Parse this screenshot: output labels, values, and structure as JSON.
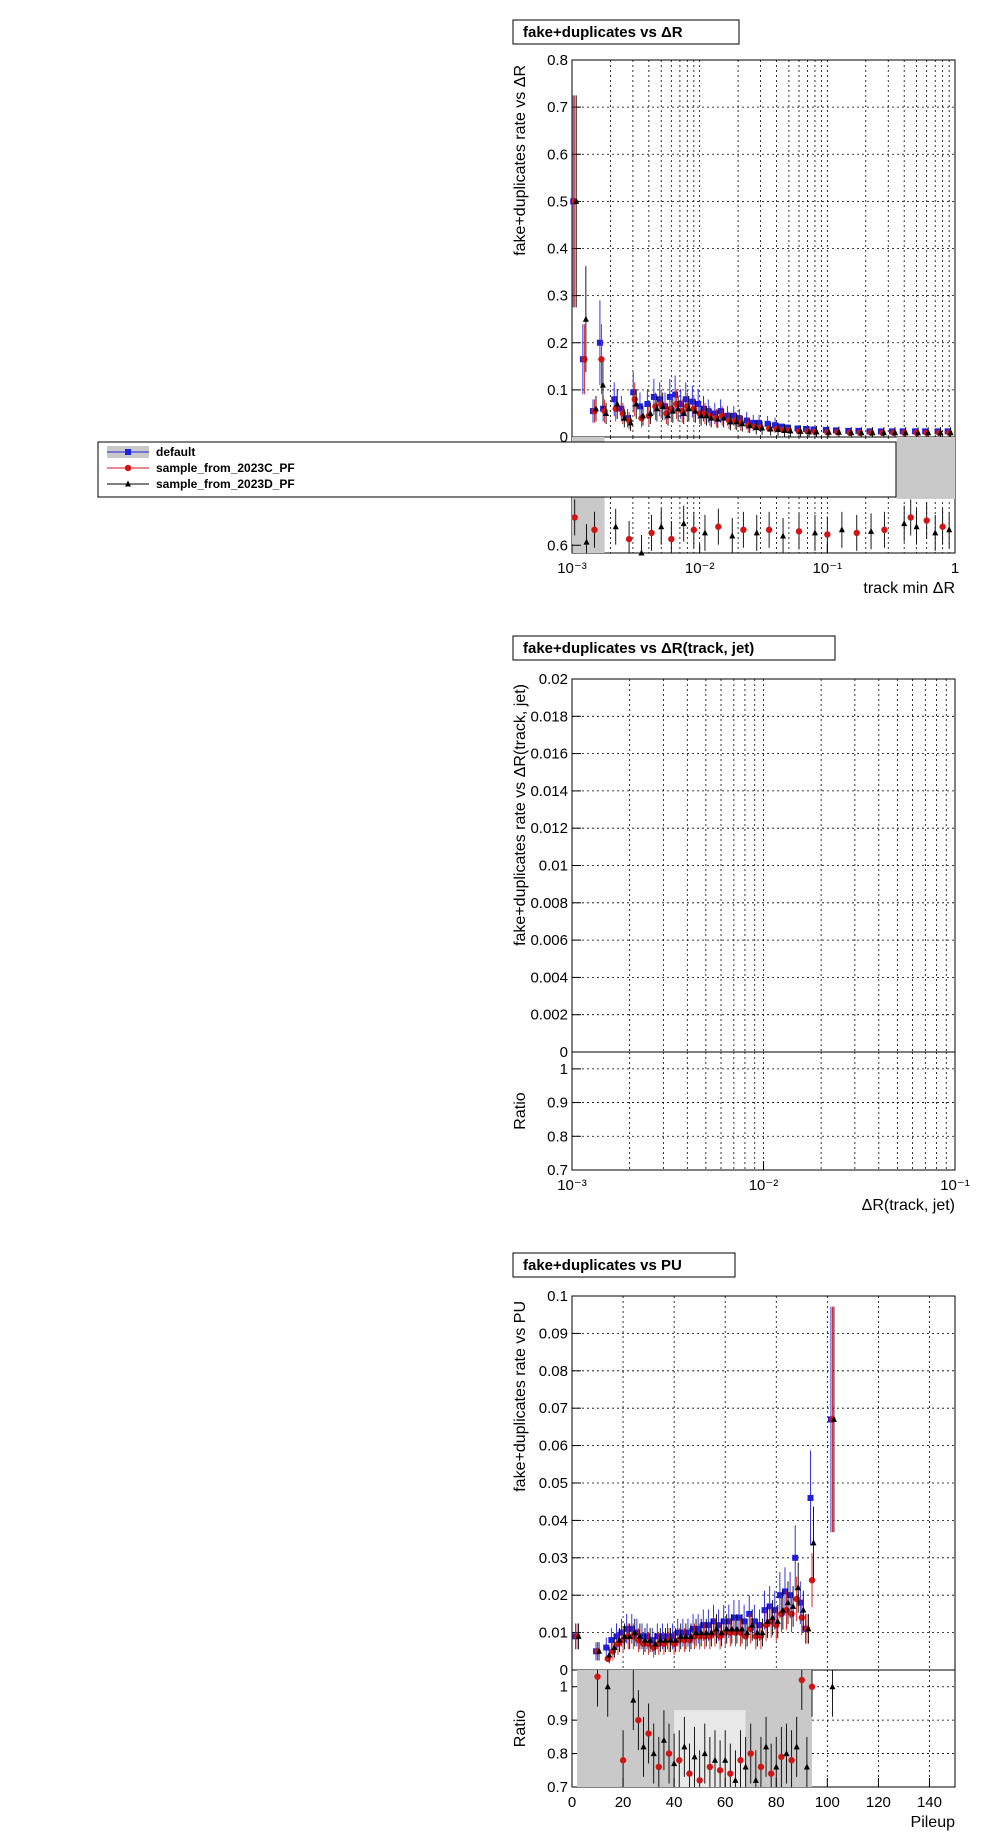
{
  "colors": {
    "default": "#1f1fe0",
    "c": "#d11515",
    "d": "#000000",
    "band": "#c9c9c9"
  },
  "legend": {
    "items": [
      {
        "label": "default",
        "marker": "square",
        "color": "#1f1fe0"
      },
      {
        "label": "sample_from_2023C_PF",
        "marker": "circle",
        "color": "#d11515"
      },
      {
        "label": "sample_from_2023D_PF",
        "marker": "triangle",
        "color": "#000000"
      }
    ]
  },
  "chart_data": [
    {
      "type": "scatter",
      "title": "fake+duplicates vs  ΔR",
      "ylabel": "fake+duplicates rate vs  ΔR",
      "xlabel": "track min  ΔR",
      "xscale": "log",
      "xlim": [
        0.001,
        1
      ],
      "ylim": [
        0,
        0.8
      ],
      "yticks": [
        "0",
        "0.1",
        "0.2",
        "0.3",
        "0.4",
        "0.5",
        "0.6",
        "0.7",
        "0.8"
      ],
      "xticks": [
        "10⁻³",
        "10⁻²",
        "10⁻¹",
        "1"
      ],
      "ratio_ticks": [
        "0.6"
      ],
      "ratio_ylim": [
        0.55,
        1.3
      ],
      "series": [
        {
          "name": "default",
          "marker": "square",
          "x": [
            0.00105,
            0.00125,
            0.0015,
            0.0017,
            0.0018,
            0.0022,
            0.0025,
            0.0028,
            0.0031,
            0.0035,
            0.004,
            0.0045,
            0.005,
            0.0055,
            0.006,
            0.0066,
            0.0073,
            0.008,
            0.009,
            0.01,
            0.011,
            0.012,
            0.0135,
            0.015,
            0.017,
            0.019,
            0.021,
            0.024,
            0.027,
            0.03,
            0.035,
            0.04,
            0.045,
            0.05,
            0.06,
            0.07,
            0.08,
            0.1,
            0.12,
            0.15,
            0.18,
            0.22,
            0.27,
            0.33,
            0.4,
            0.5,
            0.6,
            0.75,
            0.9
          ],
          "y": [
            0.5,
            0.165,
            0.055,
            0.2,
            0.06,
            0.08,
            0.06,
            0.04,
            0.095,
            0.065,
            0.07,
            0.085,
            0.08,
            0.065,
            0.085,
            0.09,
            0.07,
            0.08,
            0.075,
            0.07,
            0.06,
            0.055,
            0.05,
            0.055,
            0.045,
            0.045,
            0.04,
            0.035,
            0.03,
            0.03,
            0.028,
            0.025,
            0.022,
            0.02,
            0.018,
            0.017,
            0.016,
            0.015,
            0.014,
            0.013,
            0.013,
            0.012,
            0.012,
            0.012,
            0.012,
            0.012,
            0.012,
            0.012,
            0.012
          ]
        },
        {
          "name": "sample_from_2023C_PF",
          "marker": "circle",
          "x": [
            0.00105,
            0.00125,
            0.0015,
            0.0017,
            0.0018,
            0.0022,
            0.0025,
            0.0028,
            0.0031,
            0.0035,
            0.004,
            0.0045,
            0.005,
            0.0055,
            0.006,
            0.0066,
            0.0073,
            0.008,
            0.009,
            0.01,
            0.011,
            0.012,
            0.0135,
            0.015,
            0.017,
            0.019,
            0.021,
            0.024,
            0.027,
            0.03,
            0.035,
            0.04,
            0.045,
            0.05,
            0.06,
            0.07,
            0.08,
            0.1,
            0.12,
            0.15,
            0.18,
            0.22,
            0.27,
            0.33,
            0.4,
            0.5,
            0.6,
            0.75,
            0.9
          ],
          "y": [
            0.5,
            0.165,
            0.055,
            0.165,
            0.055,
            0.06,
            0.05,
            0.035,
            0.08,
            0.04,
            0.045,
            0.065,
            0.07,
            0.05,
            0.06,
            0.07,
            0.055,
            0.065,
            0.06,
            0.05,
            0.05,
            0.045,
            0.04,
            0.045,
            0.035,
            0.035,
            0.03,
            0.025,
            0.022,
            0.02,
            0.018,
            0.017,
            0.015,
            0.014,
            0.012,
            0.012,
            0.011,
            0.01,
            0.01,
            0.009,
            0.009,
            0.009,
            0.009,
            0.009,
            0.009,
            0.009,
            0.009,
            0.009,
            0.009
          ]
        },
        {
          "name": "sample_from_2023D_PF",
          "marker": "triangle",
          "x": [
            0.00105,
            0.00125,
            0.0015,
            0.0017,
            0.0018,
            0.0022,
            0.0025,
            0.0028,
            0.0031,
            0.0035,
            0.004,
            0.0045,
            0.005,
            0.0055,
            0.006,
            0.0066,
            0.0073,
            0.008,
            0.009,
            0.01,
            0.011,
            0.012,
            0.0135,
            0.015,
            0.017,
            0.019,
            0.021,
            0.024,
            0.027,
            0.03,
            0.035,
            0.04,
            0.045,
            0.05,
            0.06,
            0.07,
            0.08,
            0.1,
            0.12,
            0.15,
            0.18,
            0.22,
            0.27,
            0.33,
            0.4,
            0.5,
            0.6,
            0.75,
            0.9
          ],
          "y": [
            0.5,
            0.25,
            0.06,
            0.11,
            0.05,
            0.07,
            0.04,
            0.03,
            0.07,
            0.045,
            0.05,
            0.06,
            0.065,
            0.045,
            0.055,
            0.06,
            0.05,
            0.06,
            0.055,
            0.045,
            0.045,
            0.04,
            0.038,
            0.04,
            0.032,
            0.032,
            0.028,
            0.024,
            0.02,
            0.019,
            0.017,
            0.016,
            0.014,
            0.013,
            0.012,
            0.011,
            0.011,
            0.01,
            0.01,
            0.009,
            0.009,
            0.009,
            0.009,
            0.009,
            0.009,
            0.009,
            0.009,
            0.009,
            0.009
          ]
        }
      ]
    },
    {
      "type": "scatter",
      "title": "fake+duplicates vs  ΔR(track, jet)",
      "ylabel": "fake+duplicates rate vs  ΔR(track, jet)",
      "xlabel": "ΔR(track, jet)",
      "xscale": "log",
      "xlim": [
        0.001,
        0.1
      ],
      "ylim": [
        0,
        0.02
      ],
      "yticks": [
        "0",
        "0.002",
        "0.004",
        "0.006",
        "0.008",
        "0.01",
        "0.012",
        "0.014",
        "0.016",
        "0.018",
        "0.02"
      ],
      "xticks": [
        "10⁻³",
        "10⁻²",
        "10⁻¹"
      ],
      "ratio_label": "Ratio",
      "ratio_ylim": [
        0.7,
        1.05
      ],
      "ratio_ticks": [
        "0.7",
        "0.8",
        "0.9",
        "1"
      ],
      "series": []
    },
    {
      "type": "scatter",
      "title": "fake+duplicates vs PU",
      "ylabel": "fake+duplicates rate vs PU",
      "xlabel": "Pileup",
      "xscale": "linear",
      "xlim": [
        0,
        150
      ],
      "ylim": [
        0,
        0.1
      ],
      "yticks": [
        "0",
        "0.01",
        "0.02",
        "0.03",
        "0.04",
        "0.05",
        "0.06",
        "0.07",
        "0.08",
        "0.09",
        "0.1"
      ],
      "xticks": [
        "0",
        "20",
        "40",
        "60",
        "80",
        "100",
        "120",
        "140"
      ],
      "ratio_label": "Ratio",
      "ratio_ylim": [
        0.7,
        1.05
      ],
      "ratio_ticks": [
        "0.7",
        "0.8",
        "0.9",
        "1"
      ],
      "series": [
        {
          "name": "default",
          "marker": "square",
          "x": [
            2,
            10,
            14,
            16,
            18,
            20,
            22,
            24,
            26,
            28,
            30,
            32,
            34,
            36,
            38,
            40,
            42,
            44,
            46,
            48,
            50,
            52,
            54,
            56,
            58,
            60,
            62,
            64,
            66,
            68,
            70,
            72,
            74,
            76,
            78,
            80,
            82,
            84,
            86,
            88,
            90,
            92,
            94,
            102
          ],
          "y": [
            0.009,
            0.005,
            0.006,
            0.008,
            0.009,
            0.01,
            0.011,
            0.011,
            0.01,
            0.009,
            0.009,
            0.008,
            0.009,
            0.009,
            0.009,
            0.009,
            0.01,
            0.01,
            0.01,
            0.011,
            0.011,
            0.012,
            0.012,
            0.013,
            0.012,
            0.013,
            0.013,
            0.014,
            0.014,
            0.013,
            0.015,
            0.013,
            0.012,
            0.016,
            0.017,
            0.016,
            0.02,
            0.021,
            0.02,
            0.03,
            0.018,
            0.011,
            0.046,
            0.067
          ]
        },
        {
          "name": "sample_from_2023C_PF",
          "marker": "circle",
          "x": [
            2,
            10,
            14,
            16,
            18,
            20,
            22,
            24,
            26,
            28,
            30,
            32,
            34,
            36,
            38,
            40,
            42,
            44,
            46,
            48,
            50,
            52,
            54,
            56,
            58,
            60,
            62,
            64,
            66,
            68,
            70,
            72,
            74,
            76,
            78,
            80,
            82,
            84,
            86,
            88,
            90,
            92,
            94,
            102
          ],
          "y": [
            0.009,
            0.005,
            0.003,
            0.005,
            0.007,
            0.008,
            0.009,
            0.009,
            0.008,
            0.007,
            0.007,
            0.006,
            0.007,
            0.007,
            0.008,
            0.007,
            0.008,
            0.008,
            0.008,
            0.009,
            0.009,
            0.009,
            0.009,
            0.01,
            0.009,
            0.01,
            0.01,
            0.01,
            0.01,
            0.009,
            0.011,
            0.009,
            0.009,
            0.012,
            0.013,
            0.012,
            0.015,
            0.016,
            0.015,
            0.019,
            0.014,
            0.011,
            0.024,
            0.067
          ]
        },
        {
          "name": "sample_from_2023D_PF",
          "marker": "triangle",
          "x": [
            2,
            10,
            14,
            16,
            18,
            20,
            22,
            24,
            26,
            28,
            30,
            32,
            34,
            36,
            38,
            40,
            42,
            44,
            46,
            48,
            50,
            52,
            54,
            56,
            58,
            60,
            62,
            64,
            66,
            68,
            70,
            72,
            74,
            76,
            78,
            80,
            82,
            84,
            86,
            88,
            90,
            92,
            94,
            102
          ],
          "y": [
            0.009,
            0.005,
            0.004,
            0.006,
            0.008,
            0.009,
            0.009,
            0.01,
            0.009,
            0.008,
            0.008,
            0.007,
            0.008,
            0.008,
            0.008,
            0.008,
            0.009,
            0.009,
            0.009,
            0.01,
            0.01,
            0.01,
            0.01,
            0.011,
            0.01,
            0.011,
            0.011,
            0.011,
            0.011,
            0.01,
            0.012,
            0.01,
            0.01,
            0.013,
            0.014,
            0.013,
            0.016,
            0.018,
            0.017,
            0.022,
            0.016,
            0.011,
            0.034,
            0.067
          ]
        }
      ]
    }
  ]
}
